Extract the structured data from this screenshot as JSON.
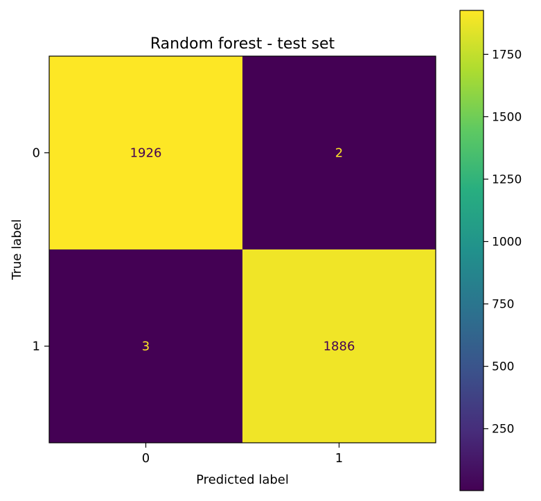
{
  "chart_data": {
    "type": "heatmap",
    "title": "Random forest - test set",
    "xlabel": "Predicted label",
    "ylabel": "True label",
    "x_categories": [
      "0",
      "1"
    ],
    "y_categories": [
      "0",
      "1"
    ],
    "values": [
      [
        1926,
        2
      ],
      [
        3,
        1886
      ]
    ],
    "colormap": "viridis",
    "colorbar": {
      "min": 2,
      "max": 1926,
      "ticks": [
        250,
        500,
        750,
        1000,
        1250,
        1500,
        1750
      ]
    },
    "grid": false
  }
}
